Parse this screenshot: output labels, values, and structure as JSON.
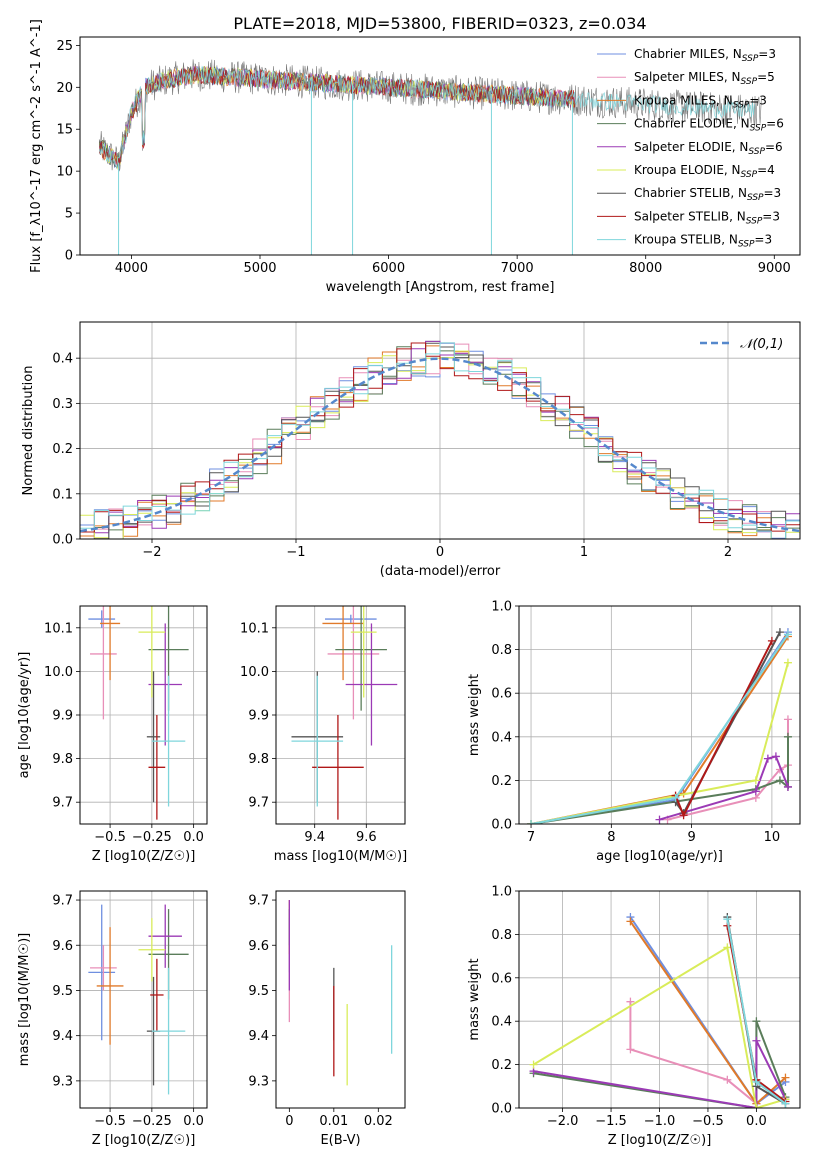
{
  "figure_title": "PLATE=2018, MJD=53800, FIBERID=0323, z=0.034",
  "model_colors": [
    "#6f8fe0",
    "#e88fb8",
    "#e07a2a",
    "#5a7d5a",
    "#9b3ab5",
    "#d9ec5a",
    "#555555",
    "#b01818",
    "#7fd6dc"
  ],
  "chart_data": [
    {
      "id": "spectrum",
      "type": "line",
      "xlabel": "wavelength [Angstrom, rest frame]",
      "ylabel": "Flux [f_λ10^-17 erg cm^-2 s^-1 A^-1]",
      "xlim": [
        3600,
        9200
      ],
      "ylim": [
        0,
        26
      ],
      "xticks": [
        4000,
        5000,
        6000,
        7000,
        8000,
        9000
      ],
      "yticks": [
        0,
        5,
        10,
        15,
        20,
        25
      ],
      "legend_position": "top-right",
      "series": [
        {
          "name": "Chabrier MILES, N_SSP=3"
        },
        {
          "name": "Salpeter MILES, N_SSP=5"
        },
        {
          "name": "Kroupa MILES, N_SSP=3"
        },
        {
          "name": "Chabrier ELODIE, N_SSP=6"
        },
        {
          "name": "Salpeter ELODIE, N_SSP=6"
        },
        {
          "name": "Kroupa ELODIE, N_SSP=4"
        },
        {
          "name": "Chabrier STELIB, N_SSP=3"
        },
        {
          "name": "Salpeter STELIB, N_SSP=3"
        },
        {
          "name": "Kroupa STELIB, N_SSP=3"
        }
      ],
      "shape_x": [
        3750,
        3900,
        4000,
        4100,
        4300,
        4500,
        5000,
        5500,
        6000,
        6500,
        7000,
        7500,
        8000,
        8500,
        8900
      ],
      "shape_y": [
        13,
        11,
        17,
        20,
        21,
        21.5,
        21,
        20.5,
        20,
        19.5,
        19,
        18.5,
        18,
        17.5,
        17.2
      ],
      "dips": [
        [
          3900,
          0
        ],
        [
          5400,
          0
        ],
        [
          5720,
          0
        ],
        [
          6800,
          0
        ],
        [
          7430,
          0
        ]
      ]
    },
    {
      "id": "residuals",
      "type": "histogram",
      "xlabel": "(data-model)/error",
      "ylabel": "Normed distribution",
      "xlim": [
        -2.5,
        2.5
      ],
      "ylim": [
        0,
        0.48
      ],
      "xticks": [
        -2,
        -1,
        0,
        1,
        2
      ],
      "yticks": [
        0.0,
        0.1,
        0.2,
        0.3,
        0.4
      ],
      "grid": true,
      "legend_position": "top-right",
      "legend": "𝒩(0,1)",
      "reference_curve": "normal(0,1)",
      "bin_width": 0.1
    },
    {
      "id": "age_vs_Z",
      "type": "scatter",
      "xlabel": "Z [log10(Z/Z☉)]",
      "ylabel": "age  [log10(age/yr)]",
      "xlim": [
        -0.68,
        0.08
      ],
      "ylim": [
        9.65,
        10.15
      ],
      "xticks": [
        -0.5,
        -0.25,
        0.0
      ],
      "xtick_labels": [
        "−0.5",
        "−0.25",
        "0.0"
      ],
      "yticks": [
        9.7,
        9.8,
        9.9,
        10.0,
        10.1
      ],
      "grid": true,
      "points": [
        {
          "x": -0.55,
          "y": 10.12,
          "xerr": 0.08,
          "yerr": 0.02
        },
        {
          "x": -0.54,
          "y": 10.04,
          "xerr": 0.08,
          "yerr": 0.15
        },
        {
          "x": -0.5,
          "y": 10.11,
          "xerr": 0.06,
          "yerr": 0.13
        },
        {
          "x": -0.15,
          "y": 10.05,
          "xerr": 0.12,
          "yerr": 0.14
        },
        {
          "x": -0.17,
          "y": 9.97,
          "xerr": 0.1,
          "yerr": 0.14
        },
        {
          "x": -0.25,
          "y": 10.09,
          "xerr": 0.08,
          "yerr": 0.15
        },
        {
          "x": -0.24,
          "y": 9.85,
          "xerr": 0.04,
          "yerr": 0.15
        },
        {
          "x": -0.22,
          "y": 9.78,
          "xerr": 0.05,
          "yerr": 0.12
        },
        {
          "x": -0.15,
          "y": 9.84,
          "xerr": 0.1,
          "yerr": 0.15
        }
      ]
    },
    {
      "id": "age_vs_mass",
      "type": "scatter",
      "xlabel": "mass [log10(M/M☉)]",
      "ylabel": "",
      "xlim": [
        9.25,
        9.75
      ],
      "ylim": [
        9.65,
        10.15
      ],
      "xticks": [
        9.4,
        9.6
      ],
      "yticks": [
        9.7,
        9.8,
        9.9,
        10.0,
        10.1
      ],
      "grid": true,
      "points": [
        {
          "x": 9.54,
          "y": 10.12,
          "xerr": 0.1,
          "yerr": 0.01
        },
        {
          "x": 9.55,
          "y": 10.04,
          "xerr": 0.1,
          "yerr": 0.15
        },
        {
          "x": 9.51,
          "y": 10.11,
          "xerr": 0.08,
          "yerr": 0.13
        },
        {
          "x": 9.58,
          "y": 10.05,
          "xerr": 0.1,
          "yerr": 0.14
        },
        {
          "x": 9.62,
          "y": 9.97,
          "xerr": 0.1,
          "yerr": 0.14
        },
        {
          "x": 9.59,
          "y": 10.09,
          "xerr": 0.05,
          "yerr": 0.15
        },
        {
          "x": 9.41,
          "y": 9.85,
          "xerr": 0.1,
          "yerr": 0.15
        },
        {
          "x": 9.49,
          "y": 9.78,
          "xerr": 0.1,
          "yerr": 0.12
        },
        {
          "x": 9.41,
          "y": 9.84,
          "xerr": 0.1,
          "yerr": 0.15
        }
      ]
    },
    {
      "id": "weight_vs_age",
      "type": "line",
      "xlabel": "age  [log10(age/yr)]",
      "ylabel": "mass weight",
      "xlim": [
        6.85,
        10.35
      ],
      "ylim": [
        0,
        1
      ],
      "xticks": [
        7,
        8,
        9,
        10
      ],
      "yticks": [
        0.0,
        0.2,
        0.4,
        0.6,
        0.8,
        1.0
      ],
      "grid": true,
      "series": [
        {
          "x": [
            7.0,
            8.8,
            10.2
          ],
          "y": [
            0.0,
            0.11,
            0.88
          ]
        },
        {
          "x": [
            8.7,
            9.8,
            10.1,
            10.2,
            10.2
          ],
          "y": [
            0.02,
            0.12,
            0.25,
            0.27,
            0.48
          ]
        },
        {
          "x": [
            7.0,
            8.9,
            10.2
          ],
          "y": [
            0.0,
            0.14,
            0.86
          ]
        },
        {
          "x": [
            7.0,
            9.8,
            10.1,
            10.2,
            10.2
          ],
          "y": [
            0.0,
            0.16,
            0.2,
            0.17,
            0.4
          ]
        },
        {
          "x": [
            8.6,
            9.8,
            9.95,
            10.05,
            10.2
          ],
          "y": [
            0.02,
            0.15,
            0.3,
            0.31,
            0.17
          ]
        },
        {
          "x": [
            7.0,
            9.8,
            10.2
          ],
          "y": [
            0.0,
            0.2,
            0.74
          ]
        },
        {
          "x": [
            8.8,
            8.9,
            10.1
          ],
          "y": [
            0.1,
            0.05,
            0.88
          ]
        },
        {
          "x": [
            8.8,
            8.9,
            10.0
          ],
          "y": [
            0.13,
            0.04,
            0.84
          ]
        },
        {
          "x": [
            7.0,
            8.8,
            10.2
          ],
          "y": [
            0.0,
            0.12,
            0.87
          ]
        }
      ]
    },
    {
      "id": "mass_vs_Z",
      "type": "scatter",
      "xlabel": "Z [log10(Z/Z☉)]",
      "ylabel": "mass [log10(M/M☉)]",
      "xlim": [
        -0.68,
        0.08
      ],
      "ylim": [
        9.24,
        9.72
      ],
      "xticks": [
        -0.5,
        -0.25,
        0.0
      ],
      "xtick_labels": [
        "−0.5",
        "−0.25",
        "0.0"
      ],
      "yticks": [
        9.3,
        9.4,
        9.5,
        9.6,
        9.7
      ],
      "grid": true,
      "points": [
        {
          "x": -0.55,
          "y": 9.54,
          "xerr": 0.08,
          "yerr": 0.15
        },
        {
          "x": -0.54,
          "y": 9.55,
          "xerr": 0.08,
          "yerr": 0.05
        },
        {
          "x": -0.5,
          "y": 9.51,
          "xerr": 0.08,
          "yerr": 0.13
        },
        {
          "x": -0.15,
          "y": 9.58,
          "xerr": 0.12,
          "yerr": 0.1
        },
        {
          "x": -0.17,
          "y": 9.62,
          "xerr": 0.1,
          "yerr": 0.07
        },
        {
          "x": -0.25,
          "y": 9.59,
          "xerr": 0.08,
          "yerr": 0.07
        },
        {
          "x": -0.24,
          "y": 9.41,
          "xerr": 0.04,
          "yerr": 0.12
        },
        {
          "x": -0.22,
          "y": 9.49,
          "xerr": 0.04,
          "yerr": 0.08
        },
        {
          "x": -0.15,
          "y": 9.41,
          "xerr": 0.1,
          "yerr": 0.14
        }
      ]
    },
    {
      "id": "mass_vs_EBV",
      "type": "scatter",
      "xlabel": "E(B-V)",
      "ylabel": "",
      "xlim": [
        -0.003,
        0.026
      ],
      "ylim": [
        9.24,
        9.72
      ],
      "xticks": [
        0.0,
        0.01,
        0.02
      ],
      "yticks": [
        9.3,
        9.4,
        9.5,
        9.6,
        9.7
      ],
      "grid": false,
      "points": [
        {
          "x": 0.0,
          "y": 9.6,
          "yerr": 0.06
        },
        {
          "x": 0.0,
          "y": 9.52,
          "yerr": 0.09
        },
        {
          "x": 0.0,
          "y": 9.64,
          "yerr": 0.06
        },
        {
          "x": 0.0,
          "y": 9.64,
          "yerr": 0.04
        },
        {
          "x": 0.0,
          "y": 9.6,
          "yerr": 0.1
        },
        {
          "x": 0.013,
          "y": 9.38,
          "yerr": 0.09
        },
        {
          "x": 0.01,
          "y": 9.47,
          "yerr": 0.08
        },
        {
          "x": 0.01,
          "y": 9.41,
          "yerr": 0.1
        },
        {
          "x": 0.023,
          "y": 9.48,
          "yerr": 0.12
        }
      ]
    },
    {
      "id": "weight_vs_Z",
      "type": "line",
      "xlabel": "Z [log10(Z/Z☉)]",
      "ylabel": "mass weight",
      "xlim": [
        -2.45,
        0.45
      ],
      "ylim": [
        0,
        1
      ],
      "xticks": [
        -2.0,
        -1.5,
        -1.0,
        -0.5,
        0.0
      ],
      "xtick_labels": [
        "−2.0",
        "−1.5",
        "−1.0",
        "−0.5",
        "0.0"
      ],
      "yticks": [
        0.0,
        0.2,
        0.4,
        0.6,
        0.8,
        1.0
      ],
      "grid": true,
      "series": [
        {
          "x": [
            -1.3,
            0.0,
            0.3
          ],
          "y": [
            0.88,
            0.02,
            0.12
          ]
        },
        {
          "x": [
            -1.3,
            -1.3,
            -0.3,
            0.0
          ],
          "y": [
            0.49,
            0.27,
            0.13,
            0.02
          ]
        },
        {
          "x": [
            -1.3,
            0.0,
            0.3
          ],
          "y": [
            0.86,
            0.02,
            0.14
          ]
        },
        {
          "x": [
            -2.3,
            0.0,
            0.0,
            0.3
          ],
          "y": [
            0.16,
            0.0,
            0.4,
            0.05
          ]
        },
        {
          "x": [
            -2.3,
            0.0,
            0.0,
            0.3
          ],
          "y": [
            0.17,
            0.0,
            0.31,
            0.04
          ]
        },
        {
          "x": [
            -2.3,
            -0.3,
            0.0,
            0.3
          ],
          "y": [
            0.2,
            0.74,
            0.0,
            0.04
          ]
        },
        {
          "x": [
            -0.3,
            0.0,
            0.3
          ],
          "y": [
            0.88,
            0.1,
            0.02
          ]
        },
        {
          "x": [
            -0.3,
            0.0,
            0.3
          ],
          "y": [
            0.84,
            0.13,
            0.03
          ]
        },
        {
          "x": [
            -0.3,
            0.0,
            0.3
          ],
          "y": [
            0.87,
            0.12,
            0.02
          ]
        }
      ]
    }
  ]
}
